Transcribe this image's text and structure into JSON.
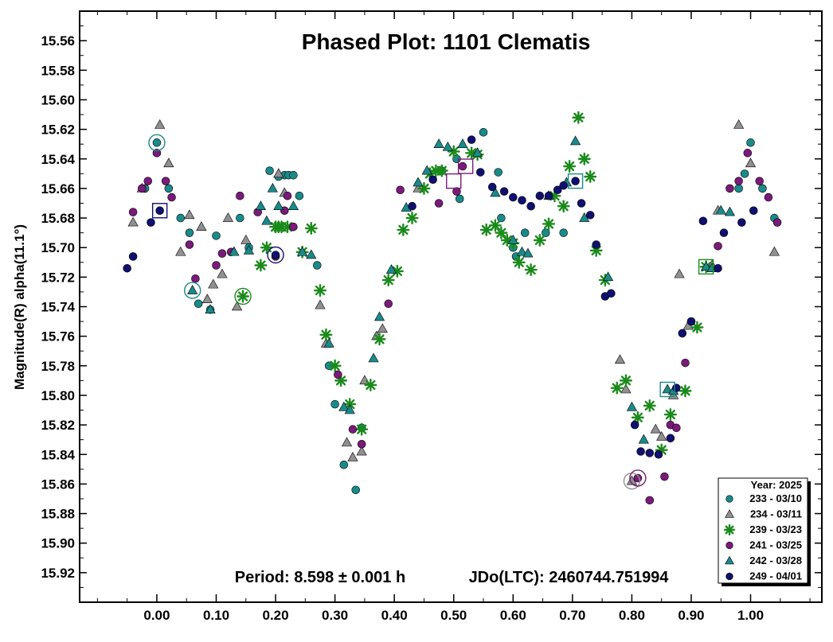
{
  "chart_data": {
    "type": "scatter",
    "title": "Phased Plot: 1101 Clematis",
    "xlabel": "",
    "ylabel": "Magnitude(R) alpha(11.1°)",
    "xlim": [
      -0.13,
      1.12
    ],
    "ylim": [
      15.94,
      15.54
    ],
    "y_inverted": true,
    "x_ticks": [
      "0.00",
      "0.10",
      "0.20",
      "0.30",
      "0.40",
      "0.50",
      "0.60",
      "0.70",
      "0.80",
      "0.90",
      "1.00"
    ],
    "x_tick_values": [
      0,
      0.1,
      0.2,
      0.3,
      0.4,
      0.5,
      0.6,
      0.7,
      0.8,
      0.9,
      1.0
    ],
    "y_ticks": [
      "15.56",
      "15.58",
      "15.60",
      "15.62",
      "15.64",
      "15.66",
      "15.68",
      "15.70",
      "15.72",
      "15.74",
      "15.76",
      "15.78",
      "15.80",
      "15.82",
      "15.84",
      "15.86",
      "15.88",
      "15.90",
      "15.92"
    ],
    "y_tick_values": [
      15.56,
      15.58,
      15.6,
      15.62,
      15.64,
      15.66,
      15.68,
      15.7,
      15.72,
      15.74,
      15.76,
      15.78,
      15.8,
      15.82,
      15.84,
      15.86,
      15.88,
      15.9,
      15.92
    ],
    "grid": false,
    "legend_position": "bottom-right",
    "legend_title": "Year: 2025",
    "annotation_period": "Period: 8.598 ± 0.001 h",
    "annotation_epoch": "JDo(LTC): 2460744.751994",
    "series": [
      {
        "name": "233 - 03/10",
        "marker": "circle",
        "color": "#1a8a8a",
        "points": [
          [
            -0.02,
            15.66
          ],
          [
            0.0,
            15.629
          ],
          [
            0.02,
            15.66
          ],
          [
            0.04,
            15.68
          ],
          [
            0.055,
            15.69
          ],
          [
            0.07,
            15.738
          ],
          [
            0.09,
            15.742
          ],
          [
            0.1,
            15.692
          ],
          [
            0.14,
            15.68
          ],
          [
            0.155,
            15.7
          ],
          [
            0.19,
            15.648
          ],
          [
            0.205,
            15.652
          ],
          [
            0.215,
            15.651
          ],
          [
            0.222,
            15.651
          ],
          [
            0.23,
            15.651
          ],
          [
            0.24,
            15.665
          ],
          [
            0.27,
            15.712
          ],
          [
            0.29,
            15.78
          ],
          [
            0.3,
            15.806
          ],
          [
            0.315,
            15.847
          ],
          [
            0.335,
            15.864
          ],
          [
            0.345,
            15.822
          ],
          [
            0.48,
            15.648
          ],
          [
            0.505,
            15.64
          ],
          [
            0.51,
            15.667
          ],
          [
            0.55,
            15.622
          ],
          [
            0.575,
            15.649
          ],
          [
            0.58,
            15.68
          ],
          [
            0.6,
            15.7
          ],
          [
            0.605,
            15.706
          ],
          [
            0.62,
            15.69
          ],
          [
            0.655,
            15.69
          ],
          [
            0.685,
            15.69
          ],
          [
            0.9,
            15.75
          ],
          [
            0.98,
            15.66
          ],
          [
            0.99,
            15.65
          ],
          [
            1.0,
            15.629
          ],
          [
            1.02,
            15.66
          ],
          [
            1.04,
            15.68
          ]
        ]
      },
      {
        "name": "234 - 03/11",
        "marker": "triangle",
        "color": "#909090",
        "points": [
          [
            -0.04,
            15.683
          ],
          [
            -0.025,
            15.66
          ],
          [
            0.005,
            15.617
          ],
          [
            0.02,
            15.643
          ],
          [
            0.04,
            15.703
          ],
          [
            0.055,
            15.678
          ],
          [
            0.075,
            15.686
          ],
          [
            0.085,
            15.735
          ],
          [
            0.095,
            15.725
          ],
          [
            0.11,
            15.718
          ],
          [
            0.12,
            15.68
          ],
          [
            0.13,
            15.703
          ],
          [
            0.135,
            15.74
          ],
          [
            0.15,
            15.695
          ],
          [
            0.205,
            15.65
          ],
          [
            0.215,
            15.663
          ],
          [
            0.275,
            15.739
          ],
          [
            0.285,
            15.765
          ],
          [
            0.32,
            15.832
          ],
          [
            0.33,
            15.842
          ],
          [
            0.345,
            15.838
          ],
          [
            0.35,
            15.79
          ],
          [
            0.37,
            15.76
          ],
          [
            0.38,
            15.755
          ],
          [
            0.44,
            15.66
          ],
          [
            0.78,
            15.776
          ],
          [
            0.79,
            15.796
          ],
          [
            0.8,
            15.858
          ],
          [
            0.84,
            15.823
          ],
          [
            0.85,
            15.828
          ],
          [
            0.87,
            15.8
          ],
          [
            0.88,
            15.718
          ],
          [
            0.895,
            15.753
          ],
          [
            0.935,
            15.712
          ],
          [
            0.945,
            15.675
          ],
          [
            0.98,
            15.617
          ],
          [
            1.0,
            15.643
          ],
          [
            1.04,
            15.703
          ]
        ]
      },
      {
        "name": "239 - 03/23",
        "marker": "star",
        "color": "#1a8a1a",
        "points": [
          [
            0.145,
            15.733
          ],
          [
            0.175,
            15.712
          ],
          [
            0.185,
            15.7
          ],
          [
            0.2,
            15.686
          ],
          [
            0.205,
            15.686
          ],
          [
            0.21,
            15.686
          ],
          [
            0.22,
            15.686
          ],
          [
            0.245,
            15.703
          ],
          [
            0.26,
            15.687
          ],
          [
            0.275,
            15.729
          ],
          [
            0.285,
            15.759
          ],
          [
            0.3,
            15.78
          ],
          [
            0.31,
            15.79
          ],
          [
            0.325,
            15.806
          ],
          [
            0.345,
            15.823
          ],
          [
            0.36,
            15.793
          ],
          [
            0.375,
            15.762
          ],
          [
            0.39,
            15.722
          ],
          [
            0.405,
            15.716
          ],
          [
            0.415,
            15.688
          ],
          [
            0.43,
            15.68
          ],
          [
            0.45,
            15.66
          ],
          [
            0.46,
            15.65
          ],
          [
            0.47,
            15.648
          ],
          [
            0.48,
            15.648
          ],
          [
            0.5,
            15.635
          ],
          [
            0.53,
            15.636
          ],
          [
            0.54,
            15.637
          ],
          [
            0.555,
            15.688
          ],
          [
            0.57,
            15.685
          ],
          [
            0.58,
            15.69
          ],
          [
            0.59,
            15.695
          ],
          [
            0.6,
            15.697
          ],
          [
            0.61,
            15.71
          ],
          [
            0.63,
            15.715
          ],
          [
            0.645,
            15.695
          ],
          [
            0.66,
            15.684
          ],
          [
            0.67,
            15.665
          ],
          [
            0.685,
            15.672
          ],
          [
            0.695,
            15.645
          ],
          [
            0.71,
            15.612
          ],
          [
            0.72,
            15.64
          ],
          [
            0.73,
            15.652
          ],
          [
            0.74,
            15.702
          ],
          [
            0.755,
            15.722
          ],
          [
            0.775,
            15.795
          ],
          [
            0.79,
            15.79
          ],
          [
            0.81,
            15.815
          ],
          [
            0.83,
            15.807
          ],
          [
            0.85,
            15.837
          ],
          [
            0.865,
            15.813
          ],
          [
            0.89,
            15.797
          ],
          [
            0.91,
            15.754
          ],
          [
            0.925,
            15.713
          ]
        ]
      },
      {
        "name": "241 - 03/25",
        "marker": "circle",
        "color": "#7a1a7a",
        "points": [
          [
            -0.04,
            15.676
          ],
          [
            -0.025,
            15.66
          ],
          [
            -0.015,
            15.655
          ],
          [
            0.0,
            15.636
          ],
          [
            0.015,
            15.655
          ],
          [
            0.025,
            15.666
          ],
          [
            0.055,
            15.698
          ],
          [
            0.065,
            15.721
          ],
          [
            0.1,
            15.712
          ],
          [
            0.11,
            15.704
          ],
          [
            0.125,
            15.703
          ],
          [
            0.14,
            15.665
          ],
          [
            0.17,
            15.676
          ],
          [
            0.2,
            15.706
          ],
          [
            0.215,
            15.675
          ],
          [
            0.22,
            15.665
          ],
          [
            0.23,
            15.686
          ],
          [
            0.305,
            15.786
          ],
          [
            0.33,
            15.823
          ],
          [
            0.345,
            15.833
          ],
          [
            0.39,
            15.738
          ],
          [
            0.41,
            15.661
          ],
          [
            0.475,
            15.67
          ],
          [
            0.505,
            15.662
          ],
          [
            0.515,
            15.645
          ],
          [
            0.81,
            15.856
          ],
          [
            0.83,
            15.871
          ],
          [
            0.855,
            15.855
          ],
          [
            0.865,
            15.82
          ],
          [
            0.875,
            15.822
          ],
          [
            0.89,
            15.778
          ],
          [
            0.945,
            15.699
          ],
          [
            0.965,
            15.66
          ],
          [
            0.98,
            15.655
          ],
          [
            0.995,
            15.636
          ],
          [
            1.015,
            15.655
          ],
          [
            1.03,
            15.666
          ],
          [
            1.045,
            15.683
          ]
        ]
      },
      {
        "name": "242 - 03/28",
        "marker": "triangle",
        "color": "#1a8a8a",
        "points": [
          [
            0.06,
            15.729
          ],
          [
            0.09,
            15.742
          ],
          [
            0.13,
            15.703
          ],
          [
            0.155,
            15.702
          ],
          [
            0.175,
            15.672
          ],
          [
            0.185,
            15.682
          ],
          [
            0.195,
            15.66
          ],
          [
            0.205,
            15.672
          ],
          [
            0.23,
            15.672
          ],
          [
            0.245,
            15.703
          ],
          [
            0.26,
            15.705
          ],
          [
            0.29,
            15.765
          ],
          [
            0.315,
            15.808
          ],
          [
            0.325,
            15.81
          ],
          [
            0.365,
            15.775
          ],
          [
            0.375,
            15.747
          ],
          [
            0.395,
            15.715
          ],
          [
            0.42,
            15.673
          ],
          [
            0.44,
            15.656
          ],
          [
            0.455,
            15.648
          ],
          [
            0.475,
            15.63
          ],
          [
            0.49,
            15.632
          ],
          [
            0.515,
            15.63
          ],
          [
            0.54,
            15.636
          ],
          [
            0.57,
            15.663
          ],
          [
            0.6,
            15.695
          ],
          [
            0.615,
            15.703
          ],
          [
            0.625,
            15.704
          ],
          [
            0.66,
            15.665
          ],
          [
            0.69,
            15.656
          ],
          [
            0.705,
            15.628
          ],
          [
            0.72,
            15.68
          ],
          [
            0.76,
            15.72
          ],
          [
            0.8,
            15.808
          ],
          [
            0.82,
            15.83
          ],
          [
            0.86,
            15.796
          ],
          [
            0.87,
            15.797
          ],
          [
            0.925,
            15.713
          ],
          [
            0.935,
            15.714
          ],
          [
            0.95,
            15.675
          ],
          [
            0.965,
            15.676
          ]
        ]
      },
      {
        "name": "249 - 04/01",
        "marker": "circle",
        "color": "#101070",
        "points": [
          [
            -0.05,
            15.714
          ],
          [
            -0.04,
            15.706
          ],
          [
            -0.01,
            15.683
          ],
          [
            0.005,
            15.675
          ],
          [
            0.2,
            15.705
          ],
          [
            0.43,
            15.672
          ],
          [
            0.465,
            15.654
          ],
          [
            0.53,
            15.627
          ],
          [
            0.545,
            15.649
          ],
          [
            0.565,
            15.659
          ],
          [
            0.585,
            15.662
          ],
          [
            0.6,
            15.666
          ],
          [
            0.615,
            15.668
          ],
          [
            0.63,
            15.672
          ],
          [
            0.645,
            15.665
          ],
          [
            0.66,
            15.665
          ],
          [
            0.675,
            15.661
          ],
          [
            0.685,
            15.658
          ],
          [
            0.705,
            15.655
          ],
          [
            0.715,
            15.67
          ],
          [
            0.73,
            15.678
          ],
          [
            0.74,
            15.698
          ],
          [
            0.755,
            15.733
          ],
          [
            0.765,
            15.731
          ],
          [
            0.805,
            15.82
          ],
          [
            0.815,
            15.838
          ],
          [
            0.83,
            15.839
          ],
          [
            0.845,
            15.84
          ],
          [
            0.865,
            15.829
          ],
          [
            0.875,
            15.795
          ],
          [
            0.885,
            15.758
          ],
          [
            0.9,
            15.75
          ],
          [
            0.92,
            15.682
          ],
          [
            0.945,
            15.714
          ],
          [
            0.955,
            15.69
          ],
          [
            0.985,
            15.683
          ],
          [
            1.005,
            15.675
          ]
        ]
      }
    ],
    "highlighted_points": [
      {
        "shape": "circle",
        "color": "#1a8a8a",
        "x": 0.0,
        "y": 15.629
      },
      {
        "shape": "square",
        "color": "#101070",
        "x": 0.005,
        "y": 15.675
      },
      {
        "shape": "circle",
        "color": "#1a8a8a",
        "x": 0.06,
        "y": 15.729
      },
      {
        "shape": "circle",
        "color": "#1a8a1a",
        "x": 0.145,
        "y": 15.733
      },
      {
        "shape": "circle",
        "color": "#101070",
        "x": 0.2,
        "y": 15.705
      },
      {
        "shape": "square",
        "color": "#7a1a7a",
        "x": 0.5,
        "y": 15.655
      },
      {
        "shape": "square",
        "color": "#7a1a7a",
        "x": 0.52,
        "y": 15.645
      },
      {
        "shape": "square",
        "color": "#1a8a8a",
        "x": 0.705,
        "y": 15.655
      },
      {
        "shape": "circle",
        "color": "#909090",
        "x": 0.8,
        "y": 15.858
      },
      {
        "shape": "circle",
        "color": "#7a1a7a",
        "x": 0.81,
        "y": 15.856
      },
      {
        "shape": "square",
        "color": "#1a8a8a",
        "x": 0.86,
        "y": 15.796
      },
      {
        "shape": "square",
        "color": "#1a8a1a",
        "x": 0.925,
        "y": 15.713
      }
    ]
  }
}
